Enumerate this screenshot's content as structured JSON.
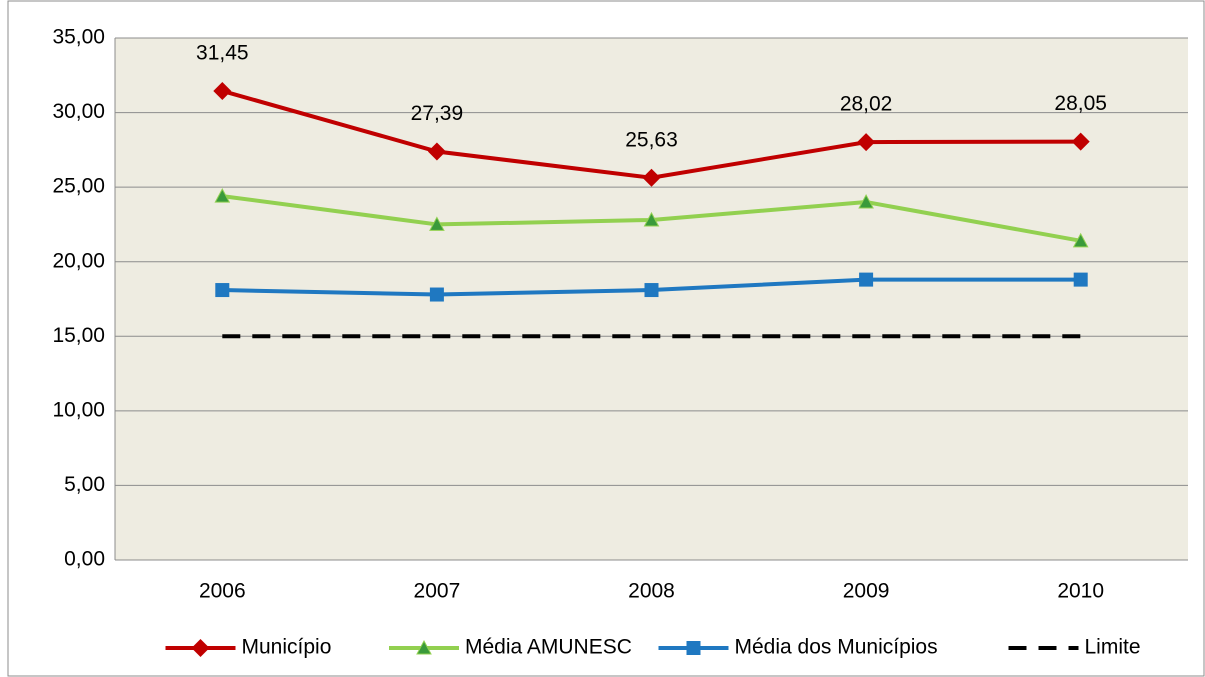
{
  "chart_data": {
    "type": "line",
    "categories": [
      "2006",
      "2007",
      "2008",
      "2009",
      "2010"
    ],
    "series": [
      {
        "name": "Município",
        "color": "#c00000",
        "marker": "diamond",
        "values": [
          31.45,
          27.39,
          25.63,
          28.02,
          28.05
        ],
        "value_labels": [
          "31,45",
          "27,39",
          "25,63",
          "28,02",
          "28,05"
        ]
      },
      {
        "name": "Média AMUNESC",
        "color": "#92d050",
        "marker": "triangle",
        "values": [
          24.4,
          22.5,
          22.8,
          24.0,
          21.4
        ]
      },
      {
        "name": "Média dos Municípios",
        "color": "#1f78c1",
        "marker": "square",
        "values": [
          18.1,
          17.8,
          18.1,
          18.8,
          18.8
        ]
      },
      {
        "name": "Limite",
        "color": "#000000",
        "dashed": true,
        "values": [
          15,
          15,
          15,
          15,
          15
        ]
      }
    ],
    "ylim": [
      0,
      35
    ],
    "yticks": [
      {
        "value": 0,
        "label": "0,00"
      },
      {
        "value": 5,
        "label": "5,00"
      },
      {
        "value": 10,
        "label": "10,00"
      },
      {
        "value": 15,
        "label": "15,00"
      },
      {
        "value": 20,
        "label": "20,00"
      },
      {
        "value": 25,
        "label": "25,00"
      },
      {
        "value": 30,
        "label": "30,00"
      },
      {
        "value": 35,
        "label": "35,00"
      }
    ],
    "grid": true,
    "legend": "bottom"
  }
}
